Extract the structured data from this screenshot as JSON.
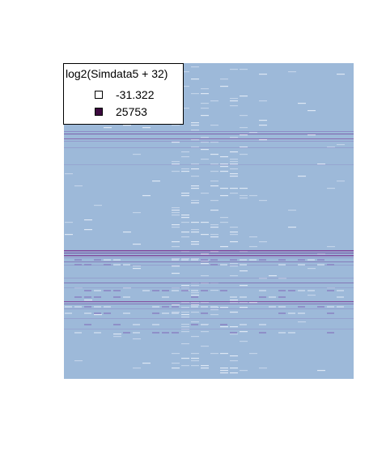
{
  "chart_data": {
    "type": "heatmap",
    "legend": {
      "title": "log2(Simdata5 + 32)",
      "entries": [
        {
          "label": "-31.322",
          "color": "#ffffff"
        },
        {
          "label": "25753",
          "color": "#3d0a3f"
        }
      ]
    },
    "colors": {
      "background": "#9db9d9",
      "faint": "#e4ecf6",
      "light": "#c7d6ea",
      "mid": "#8c87c4",
      "dark": "#6e3f9a",
      "strong": "#7a2b8c"
    }
  }
}
